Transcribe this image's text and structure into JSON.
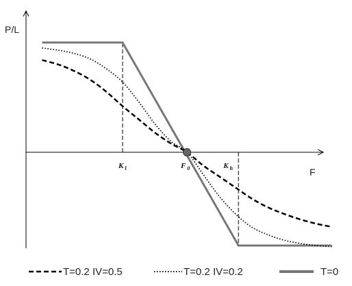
{
  "chart_data": {
    "type": "line",
    "title": "",
    "xlabel": "F",
    "ylabel": "P/L",
    "x_range": [
      0,
      1
    ],
    "y_range": [
      -1,
      1
    ],
    "grid": false,
    "legend_placement": "bottom",
    "x_ticks": [
      {
        "label": "K",
        "sub": "l",
        "x": 0.3
      },
      {
        "label": "F",
        "sub": "0",
        "x": 0.5
      },
      {
        "label": "K",
        "sub": "h",
        "x": 0.66
      }
    ],
    "reference_lines": [
      {
        "type": "vertical-dashed",
        "x": 0.3,
        "y_from": 0,
        "y_to": 1.0
      },
      {
        "type": "vertical-dashed",
        "x": 0.66,
        "y_from": 0,
        "y_to": -0.85
      }
    ],
    "marker": {
      "label": "F0",
      "x": 0.5,
      "y": 0.0
    },
    "series": [
      {
        "name": "T=0.2 IV=0.5",
        "style": "dashed",
        "color": "#000000",
        "x": [
          0.05,
          0.1,
          0.15,
          0.2,
          0.25,
          0.3,
          0.35,
          0.4,
          0.45,
          0.5,
          0.55,
          0.6,
          0.65,
          0.7,
          0.75,
          0.8,
          0.85,
          0.9,
          0.95
        ],
        "y": [
          0.84,
          0.8,
          0.74,
          0.66,
          0.55,
          0.42,
          0.3,
          0.18,
          0.08,
          0.0,
          -0.12,
          -0.22,
          -0.32,
          -0.42,
          -0.5,
          -0.56,
          -0.61,
          -0.65,
          -0.68
        ]
      },
      {
        "name": "T=0.2 IV=0.2",
        "style": "dotted",
        "color": "#000000",
        "x": [
          0.05,
          0.1,
          0.15,
          0.2,
          0.25,
          0.3,
          0.35,
          0.4,
          0.45,
          0.5,
          0.55,
          0.6,
          0.65,
          0.7,
          0.75,
          0.8,
          0.85,
          0.9,
          0.95
        ],
        "y": [
          0.95,
          0.93,
          0.9,
          0.85,
          0.76,
          0.64,
          0.46,
          0.26,
          0.1,
          0.0,
          -0.2,
          -0.4,
          -0.56,
          -0.68,
          -0.75,
          -0.8,
          -0.83,
          -0.85,
          -0.86
        ]
      },
      {
        "name": "T=0",
        "style": "solid",
        "color": "#777777",
        "x": [
          0.05,
          0.3,
          0.66,
          0.95
        ],
        "y": [
          1.0,
          1.0,
          -0.85,
          -0.85
        ]
      }
    ]
  }
}
